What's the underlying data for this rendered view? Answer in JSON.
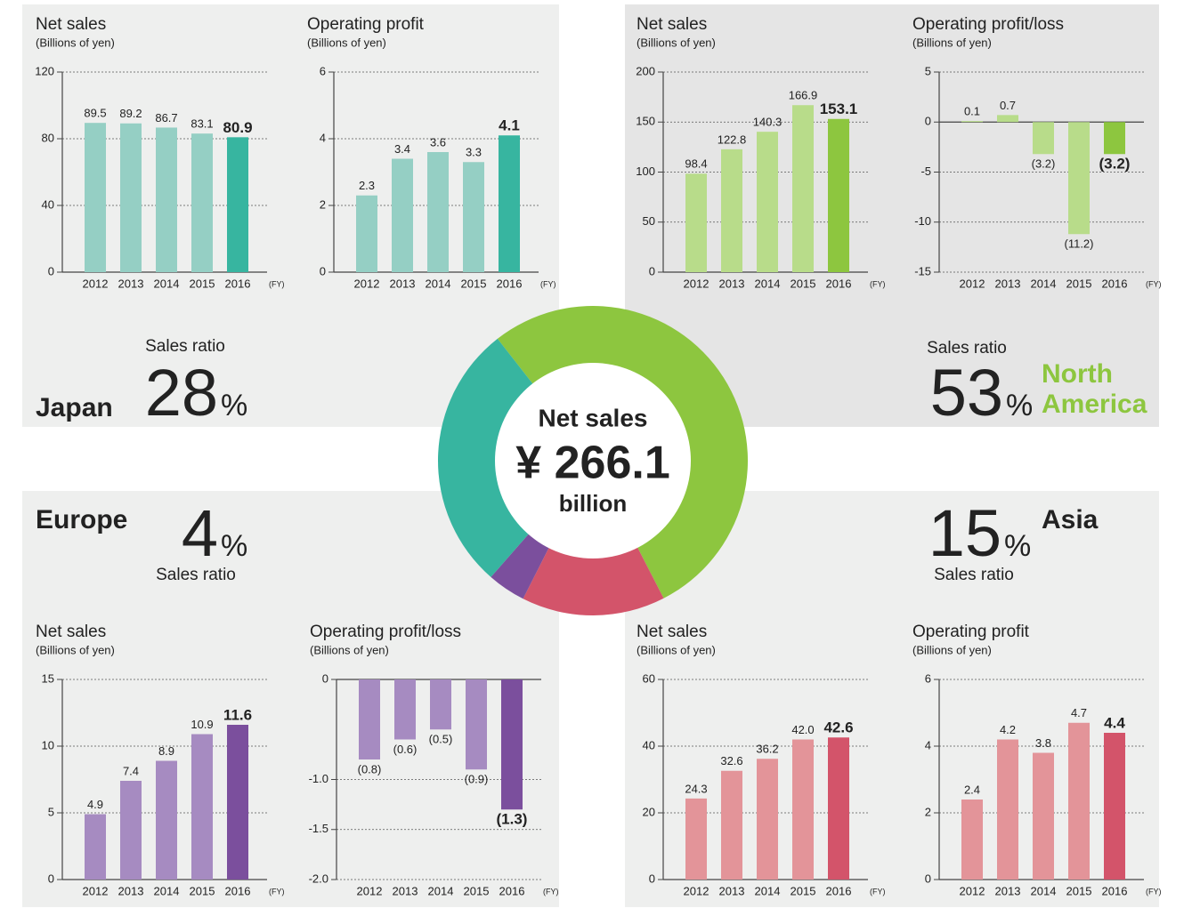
{
  "chart_data": [
    {
      "type": "bar",
      "title": "Net sales",
      "subtitle": "(Billions of yen)",
      "categories": [
        "2012",
        "2013",
        "2014",
        "2015",
        "2016"
      ],
      "values": [
        89.5,
        89.2,
        86.7,
        83.1,
        80.9
      ],
      "colors": [
        "#95cfc4",
        "#95cfc4",
        "#95cfc4",
        "#95cfc4",
        "#37b5a0"
      ],
      "ylim": [
        0,
        120
      ],
      "yticks": [
        0,
        40,
        80,
        120
      ],
      "x_unit": "(FY)"
    },
    {
      "type": "bar",
      "title": "Operating profit",
      "subtitle": "(Billions of yen)",
      "categories": [
        "2012",
        "2013",
        "2014",
        "2015",
        "2016"
      ],
      "values": [
        2.3,
        3.4,
        3.6,
        3.3,
        4.1
      ],
      "colors": [
        "#95cfc4",
        "#95cfc4",
        "#95cfc4",
        "#95cfc4",
        "#37b5a0"
      ],
      "ylim": [
        0,
        6
      ],
      "yticks": [
        0,
        2,
        4,
        6
      ],
      "x_unit": "(FY)"
    },
    {
      "type": "bar",
      "title": "Net sales",
      "subtitle": "(Billions of yen)",
      "categories": [
        "2012",
        "2013",
        "2014",
        "2015",
        "2016"
      ],
      "values": [
        98.4,
        122.8,
        140.3,
        166.9,
        153.1
      ],
      "colors": [
        "#b8dc8a",
        "#b8dc8a",
        "#b8dc8a",
        "#b8dc8a",
        "#8dc63f"
      ],
      "ylim": [
        0,
        200
      ],
      "yticks": [
        0,
        50,
        100,
        150,
        200
      ],
      "x_unit": "(FY)"
    },
    {
      "type": "bar",
      "title": "Operating profit/loss",
      "subtitle": "(Billions of yen)",
      "categories": [
        "2012",
        "2013",
        "2014",
        "2015",
        "2016"
      ],
      "values": [
        0.1,
        0.7,
        -3.2,
        -11.2,
        -3.2
      ],
      "value_labels": [
        "0.1",
        "0.7",
        "(3.2)",
        "(11.2)",
        "(3.2)"
      ],
      "colors": [
        "#b8dc8a",
        "#b8dc8a",
        "#b8dc8a",
        "#b8dc8a",
        "#8dc63f"
      ],
      "ylim": [
        -15,
        5
      ],
      "yticks": [
        -15,
        -10,
        -5,
        0,
        5
      ],
      "x_unit": "(FY)"
    },
    {
      "type": "bar",
      "title": "Net sales",
      "subtitle": "(Billions of yen)",
      "categories": [
        "2012",
        "2013",
        "2014",
        "2015",
        "2016"
      ],
      "values": [
        4.9,
        7.4,
        8.9,
        10.9,
        11.6
      ],
      "colors": [
        "#a68bc1",
        "#a68bc1",
        "#a68bc1",
        "#a68bc1",
        "#7b4f9d"
      ],
      "ylim": [
        0,
        15
      ],
      "yticks": [
        0,
        5,
        10,
        15
      ],
      "x_unit": "(FY)"
    },
    {
      "type": "bar",
      "title": "Operating profit/loss",
      "subtitle": "(Billions of yen)",
      "categories": [
        "2012",
        "2013",
        "2014",
        "2015",
        "2016"
      ],
      "values": [
        -0.8,
        -0.6,
        -0.5,
        -0.9,
        -1.3
      ],
      "value_labels": [
        "(0.8)",
        "(0.6)",
        "(0.5)",
        "(0.9)",
        "(1.3)"
      ],
      "colors": [
        "#a68bc1",
        "#a68bc1",
        "#a68bc1",
        "#a68bc1",
        "#7b4f9d"
      ],
      "ylim": [
        -2,
        0
      ],
      "yticks": [
        {
          "value": -2,
          "label": "-2.0"
        },
        -1.5,
        {
          "value": -1,
          "label": "-1.0"
        },
        0
      ],
      "x_unit": "(FY)"
    },
    {
      "type": "bar",
      "title": "Net sales",
      "subtitle": "(Billions of yen)",
      "categories": [
        "2012",
        "2013",
        "2014",
        "2015",
        "2016"
      ],
      "values": [
        24.3,
        32.6,
        36.2,
        42.0,
        42.6
      ],
      "value_labels": [
        "24.3",
        "32.6",
        "36.2",
        "42.0",
        "42.6"
      ],
      "colors": [
        "#e39499",
        "#e39499",
        "#e39499",
        "#e39499",
        "#d3546a"
      ],
      "ylim": [
        0,
        60
      ],
      "yticks": [
        0,
        20,
        40,
        60
      ],
      "x_unit": "(FY)"
    },
    {
      "type": "bar",
      "title": "Operating profit",
      "subtitle": "(Billions of yen)",
      "categories": [
        "2012",
        "2013",
        "2014",
        "2015",
        "2016"
      ],
      "values": [
        2.4,
        4.2,
        3.8,
        4.7,
        4.4
      ],
      "colors": [
        "#e39499",
        "#e39499",
        "#e39499",
        "#e39499",
        "#d3546a"
      ],
      "ylim": [
        0,
        6
      ],
      "yticks": [
        0,
        2,
        4,
        6
      ],
      "x_unit": "(FY)"
    },
    {
      "type": "pie",
      "center_text": [
        "Net sales",
        "¥ 266.1",
        "billion"
      ],
      "categories": [
        "North America",
        "Asia",
        "Europe",
        "Japan"
      ],
      "values": [
        53,
        15,
        4,
        28
      ],
      "colors": [
        "#8dc63f",
        "#d3546a",
        "#7b4f9d",
        "#37b5a0"
      ],
      "unit": "%",
      "sales_ratio_label": "Sales ratio"
    }
  ]
}
